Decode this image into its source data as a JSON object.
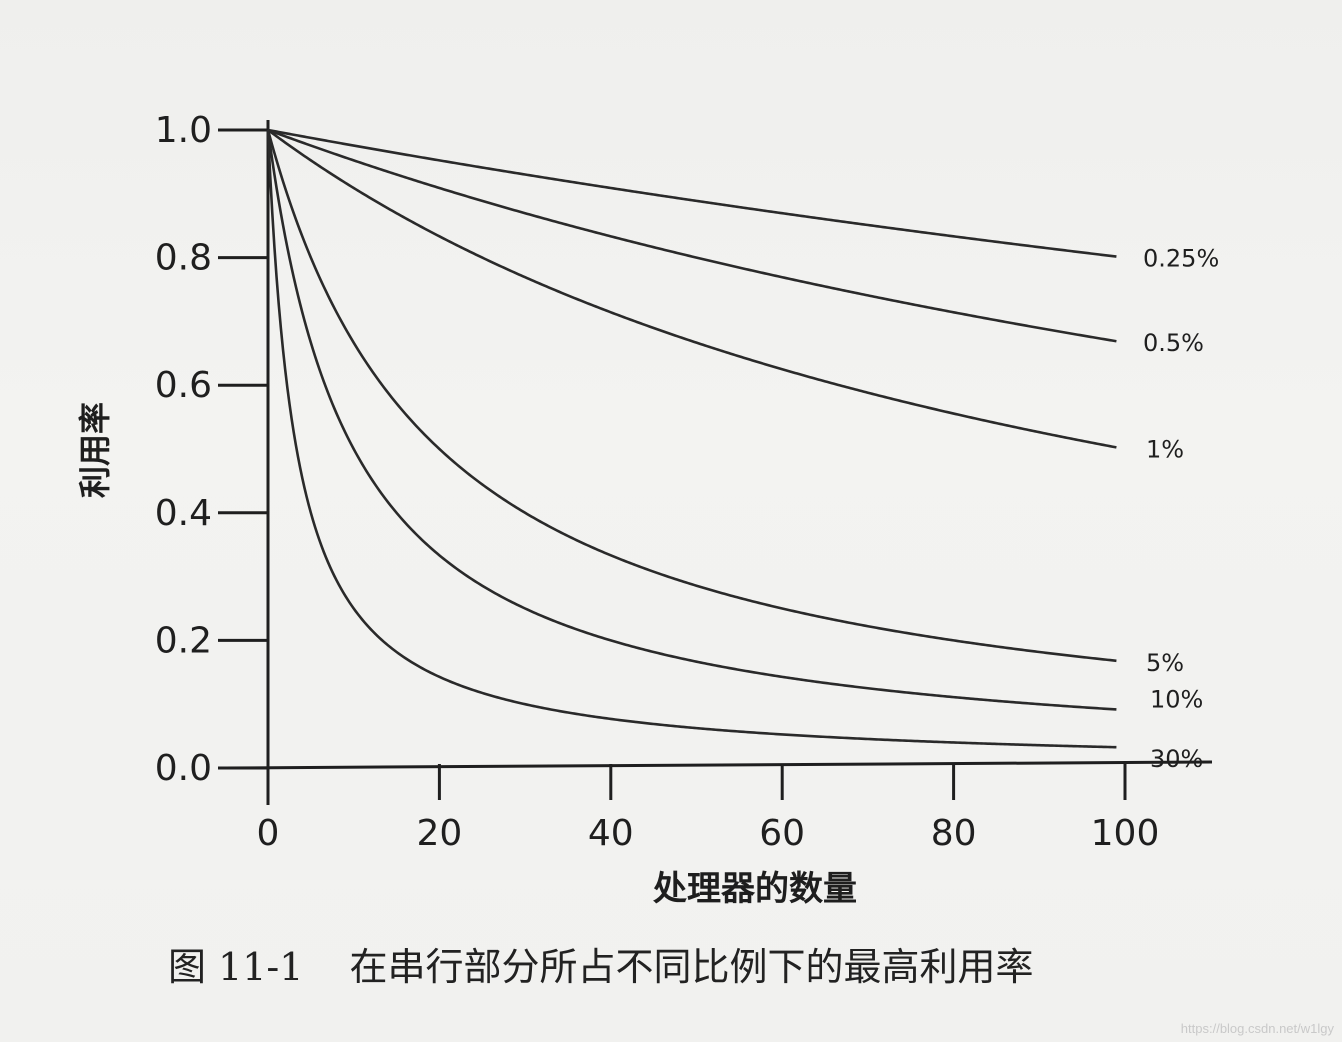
{
  "chart_data": {
    "type": "line",
    "xlabel": "处理器的数量",
    "ylabel": "利用率",
    "xlim": [
      0,
      100
    ],
    "ylim": [
      0,
      1.0
    ],
    "x_ticks": [
      "0",
      "20",
      "40",
      "60",
      "80",
      "100"
    ],
    "y_ticks": [
      "0.0",
      "0.2",
      "0.4",
      "0.6",
      "0.8",
      "1.0"
    ],
    "grid": false,
    "legend": "inline labels at right end of each curve",
    "series": [
      {
        "name": "0.25%",
        "serial_fraction": 0.0025
      },
      {
        "name": "0.5%",
        "serial_fraction": 0.005
      },
      {
        "name": "1%",
        "serial_fraction": 0.01
      },
      {
        "name": "5%",
        "serial_fraction": 0.05
      },
      {
        "name": "10%",
        "serial_fraction": 0.1
      },
      {
        "name": "30%",
        "serial_fraction": 0.3
      }
    ]
  },
  "figure": {
    "caption_number": "图 11-1",
    "caption_text": "在串行部分所占不同比例下的最高利用率"
  },
  "watermark": "https://blog.csdn.net/w1lgy"
}
